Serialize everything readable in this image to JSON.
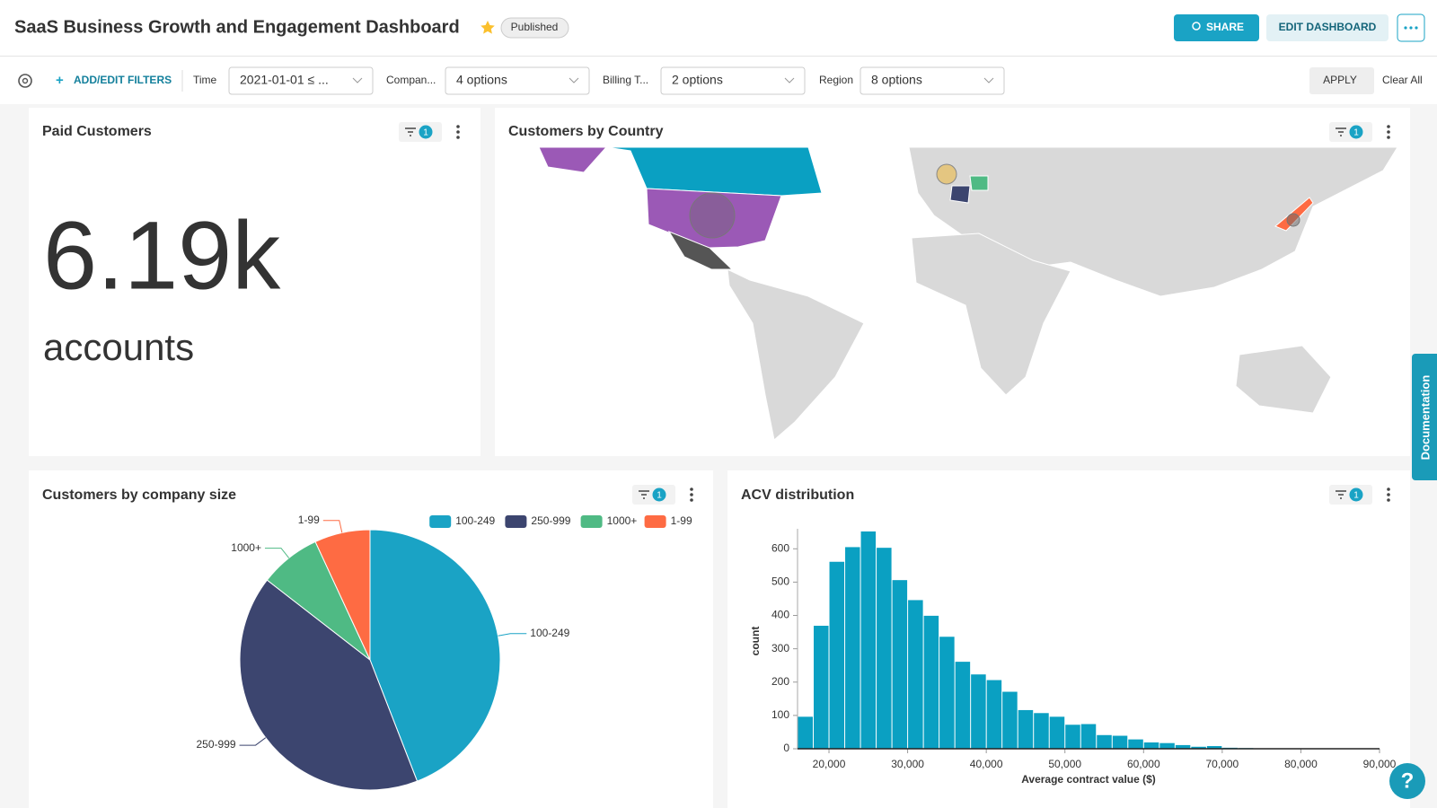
{
  "header": {
    "title": "SaaS Business Growth and Engagement Dashboard",
    "status": "Published",
    "share": "SHARE",
    "edit": "EDIT DASHBOARD"
  },
  "filters": {
    "add_label": "ADD/EDIT FILTERS",
    "items": [
      {
        "label": "Time",
        "value": "2021-01-01 ≤ ..."
      },
      {
        "label": "Compan...",
        "value": "4 options"
      },
      {
        "label": "Billing T...",
        "value": "2 options"
      },
      {
        "label": "Region",
        "value": "8 options"
      }
    ],
    "apply": "APPLY",
    "clear": "Clear All"
  },
  "cards": [
    {
      "title": "Paid Customers",
      "filter_count": 1,
      "big_number": "6.19k",
      "subheader": "accounts"
    },
    {
      "title": "Customers by Country",
      "filter_count": 1
    }
  ],
  "chart_data": [
    {
      "type": "pie",
      "title": "Customers by company size",
      "filter_count": 1,
      "categories": [
        "100-249",
        "250-999",
        "1000+",
        "1-99"
      ],
      "values": [
        44.1,
        41.4,
        7.6,
        6.9
      ],
      "colors": [
        "#1aa3c5",
        "#3c456f",
        "#4fba84",
        "#fe6b43"
      ],
      "legend": "top-right"
    },
    {
      "type": "histogram",
      "title": "ACV distribution",
      "filter_count": 1,
      "color": "#0aa0c2",
      "x_label": "Average contract value ($)",
      "y_label": "count",
      "bins": [
        16000,
        18000,
        20000,
        22000,
        24000,
        26000,
        28000,
        30000,
        32000,
        34000,
        36000,
        38000,
        40000,
        42000,
        44000,
        46000,
        48000,
        50000,
        52000,
        54000,
        56000,
        58000,
        60000,
        62000,
        64000,
        66000,
        68000,
        70000,
        72000,
        74000
      ],
      "values": [
        96,
        369,
        561,
        605,
        652,
        603,
        506,
        446,
        399,
        336,
        261,
        223,
        206,
        171,
        116,
        107,
        96,
        72,
        74,
        41,
        39,
        28,
        19,
        17,
        11,
        6,
        8,
        3,
        2
      ],
      "xlim": [
        16000,
        90000
      ],
      "ylim": [
        0,
        660
      ],
      "xticks": [
        {
          "value": 20000,
          "label": "20,000"
        },
        {
          "value": 30000,
          "label": "30,000"
        },
        {
          "value": 40000,
          "label": "40,000"
        },
        {
          "value": 50000,
          "label": "50,000"
        },
        {
          "value": 60000,
          "label": "60,000"
        },
        {
          "value": 70000,
          "label": "70,000"
        },
        {
          "value": 80000,
          "label": "80,000"
        },
        {
          "value": 90000,
          "label": "90,000"
        }
      ],
      "yticks": [
        0,
        100,
        200,
        300,
        400,
        500,
        600
      ],
      "grid": false
    }
  ],
  "side_tab": "Documentation",
  "help": "?"
}
